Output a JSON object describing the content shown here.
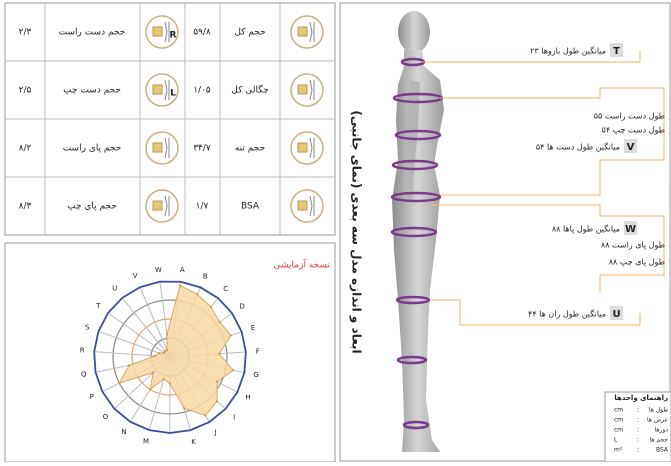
{
  "table": {
    "rows": [
      {
        "label": "حجم کل",
        "value": "۵۹/۸",
        "label2": "حجم دست راست",
        "value2": "۲/۳",
        "letter2": "R"
      },
      {
        "label": "چگالی کل",
        "value": "۱/۰۵",
        "label2": "حجم دست چپ",
        "value2": "۲/۵",
        "letter2": "L"
      },
      {
        "label": "حجم تنه",
        "value": "۳۴/۷",
        "label2": "حجم پای راست",
        "value2": "۸/۲"
      },
      {
        "label": "BSA",
        "value": "۱/۷",
        "label2": "حجم پای چپ",
        "value2": "۸/۳"
      }
    ]
  },
  "radar": {
    "badge": "نسخه آزمایشی",
    "axes": [
      "A",
      "B",
      "C",
      "D",
      "E",
      "F",
      "G",
      "H",
      "I",
      "J",
      "K",
      null,
      "M",
      "N",
      "O",
      "P",
      "Q",
      "R",
      "S",
      "T",
      "U",
      "V",
      "W"
    ],
    "values": [
      95,
      90,
      85,
      80,
      85,
      65,
      85,
      70,
      85,
      90,
      70,
      35,
      30,
      50,
      30,
      75,
      55,
      20,
      15,
      10,
      10,
      10,
      30
    ]
  },
  "side": {
    "title": "ابعاد و اندازه مدل سه بعدی (نمای جانبی)",
    "labels": [
      {
        "letter": "T",
        "text": "میانگین طول بازوها ۲۳"
      },
      {
        "text": "طول دست راست ۵۵"
      },
      {
        "text": "طول دست چپ ۵۴"
      },
      {
        "letter": "V",
        "text": "میانگین طول دست ها ۵۴"
      },
      {
        "letter": "W",
        "text": "میانگین طول پاها ۸۸"
      },
      {
        "text": "طول پای راست ۸۸"
      },
      {
        "text": "طول پای چپ ۸۸"
      },
      {
        "letter": "U",
        "text": "میانگین طول ران ها ۴۴"
      }
    ]
  },
  "units": {
    "title": "راهنمای واحدها",
    "rows": [
      {
        "unit": "cm",
        "name": "طول ها"
      },
      {
        "unit": "cm",
        "name": "عرض ها"
      },
      {
        "unit": "cm",
        "name": "دورها"
      },
      {
        "unit": "L",
        "name": "حجم ها"
      },
      {
        "unit": "m²",
        "name": "BSA"
      }
    ]
  }
}
